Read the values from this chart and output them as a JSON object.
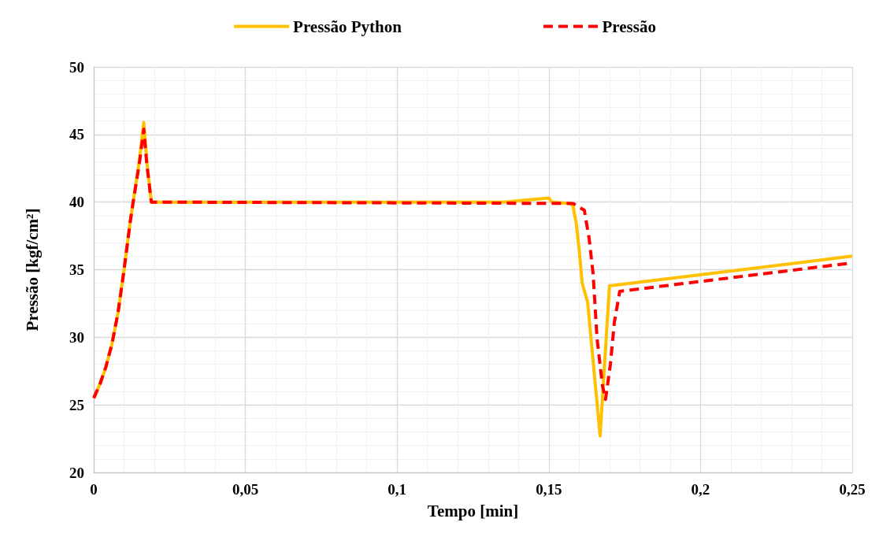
{
  "chart_data": {
    "type": "line",
    "xlabel": "Tempo [min]",
    "ylabel": "Pressão [kgf/cm²]",
    "xlim": [
      0,
      0.25
    ],
    "ylim": [
      20,
      50
    ],
    "xticks": [
      0,
      {
        "value": 0.05,
        "label": "0,05"
      },
      {
        "value": 0.1,
        "label": "0,1"
      },
      {
        "value": 0.15,
        "label": "0,15"
      },
      {
        "value": 0.2,
        "label": "0,2"
      },
      {
        "value": 0.25,
        "label": "0,25"
      }
    ],
    "yticks": [
      20,
      25,
      30,
      35,
      40,
      45,
      50
    ],
    "grid": true,
    "legend": "top",
    "marker": "none",
    "series": [
      {
        "name": "Pressão Python",
        "color": "#ffc000",
        "line_style": "solid",
        "x": [
          0,
          0.002,
          0.004,
          0.006,
          0.008,
          0.01,
          0.012,
          0.013,
          0.015,
          0.0165,
          0.0175,
          0.019,
          0.02,
          0.135,
          0.15,
          0.151,
          0.157,
          0.158,
          0.159,
          0.16,
          0.161,
          0.1628,
          0.1669,
          0.17,
          0.25
        ],
        "values": [
          25.5,
          26.5,
          27.8,
          29.5,
          31.8,
          35,
          38.5,
          40,
          43,
          45.9,
          43,
          40,
          40,
          40,
          40.3,
          40,
          39.9,
          39.7,
          38.5,
          36.5,
          34,
          32.6,
          22.7,
          33.8,
          36
        ]
      },
      {
        "name": "Pressão",
        "color": "#ff0000",
        "line_style": "dashed",
        "x": [
          0,
          0.002,
          0.004,
          0.006,
          0.008,
          0.01,
          0.012,
          0.013,
          0.015,
          0.0165,
          0.0175,
          0.019,
          0.02,
          0.158,
          0.1617,
          0.1633,
          0.1646,
          0.1659,
          0.1677,
          0.1687,
          0.1703,
          0.1716,
          0.1734,
          0.25
        ],
        "values": [
          25.5,
          26.5,
          27.8,
          29.5,
          31.8,
          35,
          38.5,
          40,
          42.8,
          45.4,
          42.8,
          40,
          40,
          39.9,
          39.4,
          37.3,
          34.7,
          29.9,
          26.4,
          25.4,
          28,
          31.1,
          33.4,
          35.5
        ]
      }
    ]
  }
}
